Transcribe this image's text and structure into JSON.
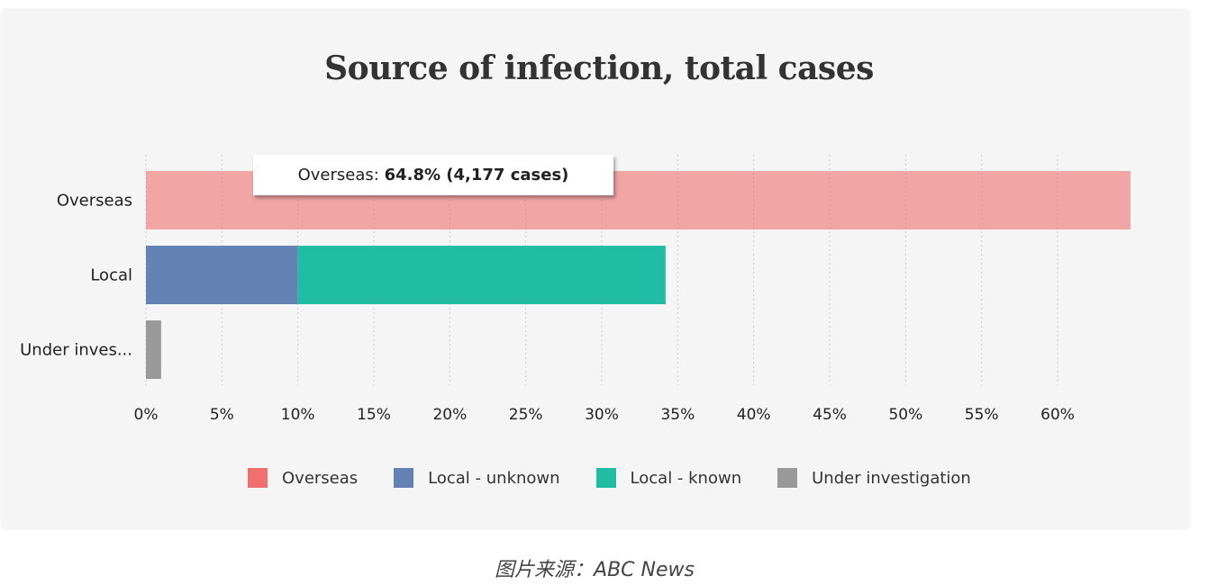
{
  "chart_data": {
    "type": "bar",
    "orientation": "horizontal",
    "stacked": true,
    "title": "Source of infection, total cases",
    "categories": [
      "Overseas",
      "Local",
      "Under inves..."
    ],
    "series": [
      {
        "name": "Overseas",
        "color": "#f07070",
        "values": [
          64.8,
          0,
          0
        ]
      },
      {
        "name": "Local - unknown",
        "color": "#6482b4",
        "values": [
          0,
          10.0,
          0
        ]
      },
      {
        "name": "Local - known",
        "color": "#20bca4",
        "values": [
          0,
          24.2,
          0
        ]
      },
      {
        "name": "Under investigation",
        "color": "#999999",
        "values": [
          0,
          0,
          1.0
        ]
      }
    ],
    "highlighted_category": "Overseas",
    "xlim": [
      0,
      64.8
    ],
    "xticks": [
      0,
      5,
      10,
      15,
      20,
      25,
      30,
      35,
      40,
      45,
      50,
      55,
      60
    ],
    "xtick_labels": [
      "0%",
      "5%",
      "10%",
      "15%",
      "20%",
      "25%",
      "30%",
      "35%",
      "40%",
      "45%",
      "50%",
      "55%",
      "60%"
    ],
    "grid": "vertical-dotted",
    "legend_position": "bottom"
  },
  "tooltip": {
    "label": "Overseas:",
    "value": "64.8% (4,177 cases)"
  },
  "caption": "图片来源：ABC News"
}
